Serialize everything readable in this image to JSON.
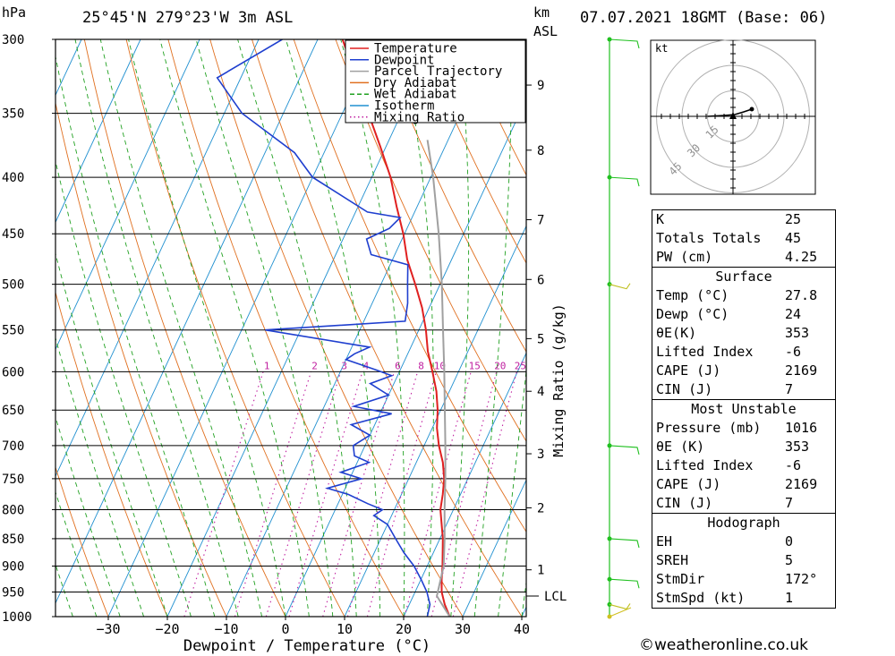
{
  "header": {
    "pressure_unit": "hPa",
    "location": "25°45'N 279°23'W 3m ASL",
    "km_label": "km",
    "asl_label": "ASL",
    "datetime": "07.07.2021 18GMT (Base: 06)"
  },
  "chart_data": {
    "type": "line",
    "title": "",
    "xlabel": "Dewpoint / Temperature (°C)",
    "ylabel": "hPa",
    "right_label": "Mixing Ratio (g/kg)",
    "xlim": [
      -40,
      40
    ],
    "ylim": [
      1000,
      300
    ],
    "x_ticks": [
      -30,
      -20,
      -10,
      0,
      10,
      20,
      30,
      40
    ],
    "pressure_levels": [
      300,
      350,
      400,
      450,
      500,
      550,
      600,
      650,
      700,
      750,
      800,
      850,
      900,
      950,
      1000
    ],
    "km_ticks": [
      {
        "km": "1",
        "p": 907
      },
      {
        "km": "2",
        "p": 797
      },
      {
        "km": "3",
        "p": 712
      },
      {
        "km": "4",
        "p": 625
      },
      {
        "km": "5",
        "p": 560
      },
      {
        "km": "6",
        "p": 495
      },
      {
        "km": "7",
        "p": 437
      },
      {
        "km": "8",
        "p": 378
      },
      {
        "km": "9",
        "p": 330
      }
    ],
    "lcl": {
      "label": "LCL",
      "p": 958
    },
    "mixing_ratio_labels": [
      "1",
      "2",
      "3",
      "4",
      "6",
      "8",
      "10",
      "15",
      "20",
      "25"
    ],
    "mixing_ratio_values": [
      1,
      2,
      3,
      4,
      6,
      8,
      10,
      15,
      20,
      25
    ],
    "legend": [
      {
        "name": "Temperature",
        "color": "#e02020"
      },
      {
        "name": "Dewpoint",
        "color": "#1f3fcf"
      },
      {
        "name": "Parcel Trajectory",
        "color": "#a0a0a0"
      },
      {
        "name": "Dry Adiabat",
        "color": "#e07020"
      },
      {
        "name": "Wet Adiabat",
        "color": "#20a020"
      },
      {
        "name": "Isotherm",
        "color": "#2090d0"
      },
      {
        "name": "Mixing Ratio",
        "color": "#c020a0"
      }
    ],
    "series": [
      {
        "name": "Temperature",
        "points": [
          [
            1000,
            27.8
          ],
          [
            975,
            26
          ],
          [
            950,
            24.5
          ],
          [
            925,
            23.5
          ],
          [
            900,
            22.6
          ],
          [
            850,
            20.5
          ],
          [
            800,
            17.8
          ],
          [
            775,
            17
          ],
          [
            750,
            16
          ],
          [
            725,
            14.5
          ],
          [
            700,
            12.5
          ],
          [
            675,
            10.8
          ],
          [
            650,
            9.5
          ],
          [
            625,
            7.8
          ],
          [
            600,
            5.6
          ],
          [
            575,
            3.2
          ],
          [
            550,
            1.2
          ],
          [
            525,
            -1.2
          ],
          [
            500,
            -4.2
          ],
          [
            475,
            -7.5
          ],
          [
            450,
            -10.2
          ],
          [
            425,
            -13.5
          ],
          [
            400,
            -16.8
          ],
          [
            375,
            -21
          ],
          [
            350,
            -25.6
          ],
          [
            325,
            -30.5
          ],
          [
            300,
            -35.8
          ]
        ]
      },
      {
        "name": "Dewpoint",
        "points": [
          [
            1000,
            24
          ],
          [
            975,
            23.5
          ],
          [
            950,
            22
          ],
          [
            925,
            20
          ],
          [
            900,
            17.8
          ],
          [
            875,
            15
          ],
          [
            850,
            12.5
          ],
          [
            825,
            10
          ],
          [
            810,
            7
          ],
          [
            800,
            8
          ],
          [
            790,
            5
          ],
          [
            775,
            1
          ],
          [
            765,
            -3
          ],
          [
            750,
            2
          ],
          [
            740,
            -2
          ],
          [
            725,
            2
          ],
          [
            715,
            -1
          ],
          [
            700,
            -2
          ],
          [
            685,
            0
          ],
          [
            670,
            -4
          ],
          [
            655,
            2
          ],
          [
            645,
            -5
          ],
          [
            630,
            0
          ],
          [
            615,
            -4
          ],
          [
            605,
            -1
          ],
          [
            598,
            -4
          ],
          [
            585,
            -10
          ],
          [
            578,
            -9
          ],
          [
            570,
            -7
          ],
          [
            550,
            -26
          ],
          [
            540,
            -3
          ],
          [
            520,
            -4
          ],
          [
            500,
            -5.5
          ],
          [
            480,
            -7
          ],
          [
            470,
            -14
          ],
          [
            455,
            -16
          ],
          [
            445,
            -13
          ],
          [
            435,
            -12
          ],
          [
            430,
            -18
          ],
          [
            400,
            -30
          ],
          [
            380,
            -35
          ],
          [
            350,
            -47
          ],
          [
            325,
            -54
          ],
          [
            300,
            -46
          ]
        ]
      },
      {
        "name": "Parcel Trajectory",
        "points": [
          [
            1000,
            27.8
          ],
          [
            958,
            24
          ],
          [
            900,
            22.8
          ],
          [
            850,
            20.8
          ],
          [
            800,
            18.5
          ],
          [
            750,
            16.2
          ],
          [
            700,
            13.6
          ],
          [
            650,
            10.7
          ],
          [
            600,
            7.6
          ],
          [
            550,
            4.1
          ],
          [
            500,
            0.3
          ],
          [
            450,
            -4.2
          ],
          [
            400,
            -9.6
          ],
          [
            370,
            -13.5
          ]
        ]
      }
    ],
    "wind_barbs": [
      {
        "p": 1000,
        "style": "calm"
      },
      {
        "p": 975,
        "style": "light"
      },
      {
        "p": 925,
        "style": "barb"
      },
      {
        "p": 850,
        "style": "barb"
      },
      {
        "p": 700,
        "style": "barb"
      },
      {
        "p": 500,
        "style": "light"
      },
      {
        "p": 400,
        "style": "barb"
      },
      {
        "p": 300,
        "style": "barb"
      }
    ]
  },
  "hodograph": {
    "unit": "kt",
    "rings": [
      "15",
      "30",
      "45"
    ]
  },
  "indices": {
    "top": [
      {
        "label": "K",
        "value": "25"
      },
      {
        "label": "Totals Totals",
        "value": "45"
      },
      {
        "label": "PW (cm)",
        "value": "4.25"
      }
    ],
    "surface_title": "Surface",
    "surface": [
      {
        "label": "Temp (°C)",
        "value": "27.8"
      },
      {
        "label": "Dewp (°C)",
        "value": "24"
      },
      {
        "label": "θE(K)",
        "value": "353"
      },
      {
        "label": "Lifted Index",
        "value": "-6"
      },
      {
        "label": "CAPE (J)",
        "value": "2169"
      },
      {
        "label": "CIN (J)",
        "value": "7"
      }
    ],
    "unstable_title": "Most Unstable",
    "unstable": [
      {
        "label": "Pressure (mb)",
        "value": "1016"
      },
      {
        "label": "θE (K)",
        "value": "353"
      },
      {
        "label": "Lifted Index",
        "value": "-6"
      },
      {
        "label": "CAPE (J)",
        "value": "2169"
      },
      {
        "label": "CIN (J)",
        "value": "7"
      }
    ],
    "hodograph_title": "Hodograph",
    "hodograph": [
      {
        "label": "EH",
        "value": "0"
      },
      {
        "label": "SREH",
        "value": "5"
      },
      {
        "label": "StmDir",
        "value": "172°"
      },
      {
        "label": "StmSpd (kt)",
        "value": "1"
      }
    ]
  },
  "credit": "©weatheronline.co.uk"
}
